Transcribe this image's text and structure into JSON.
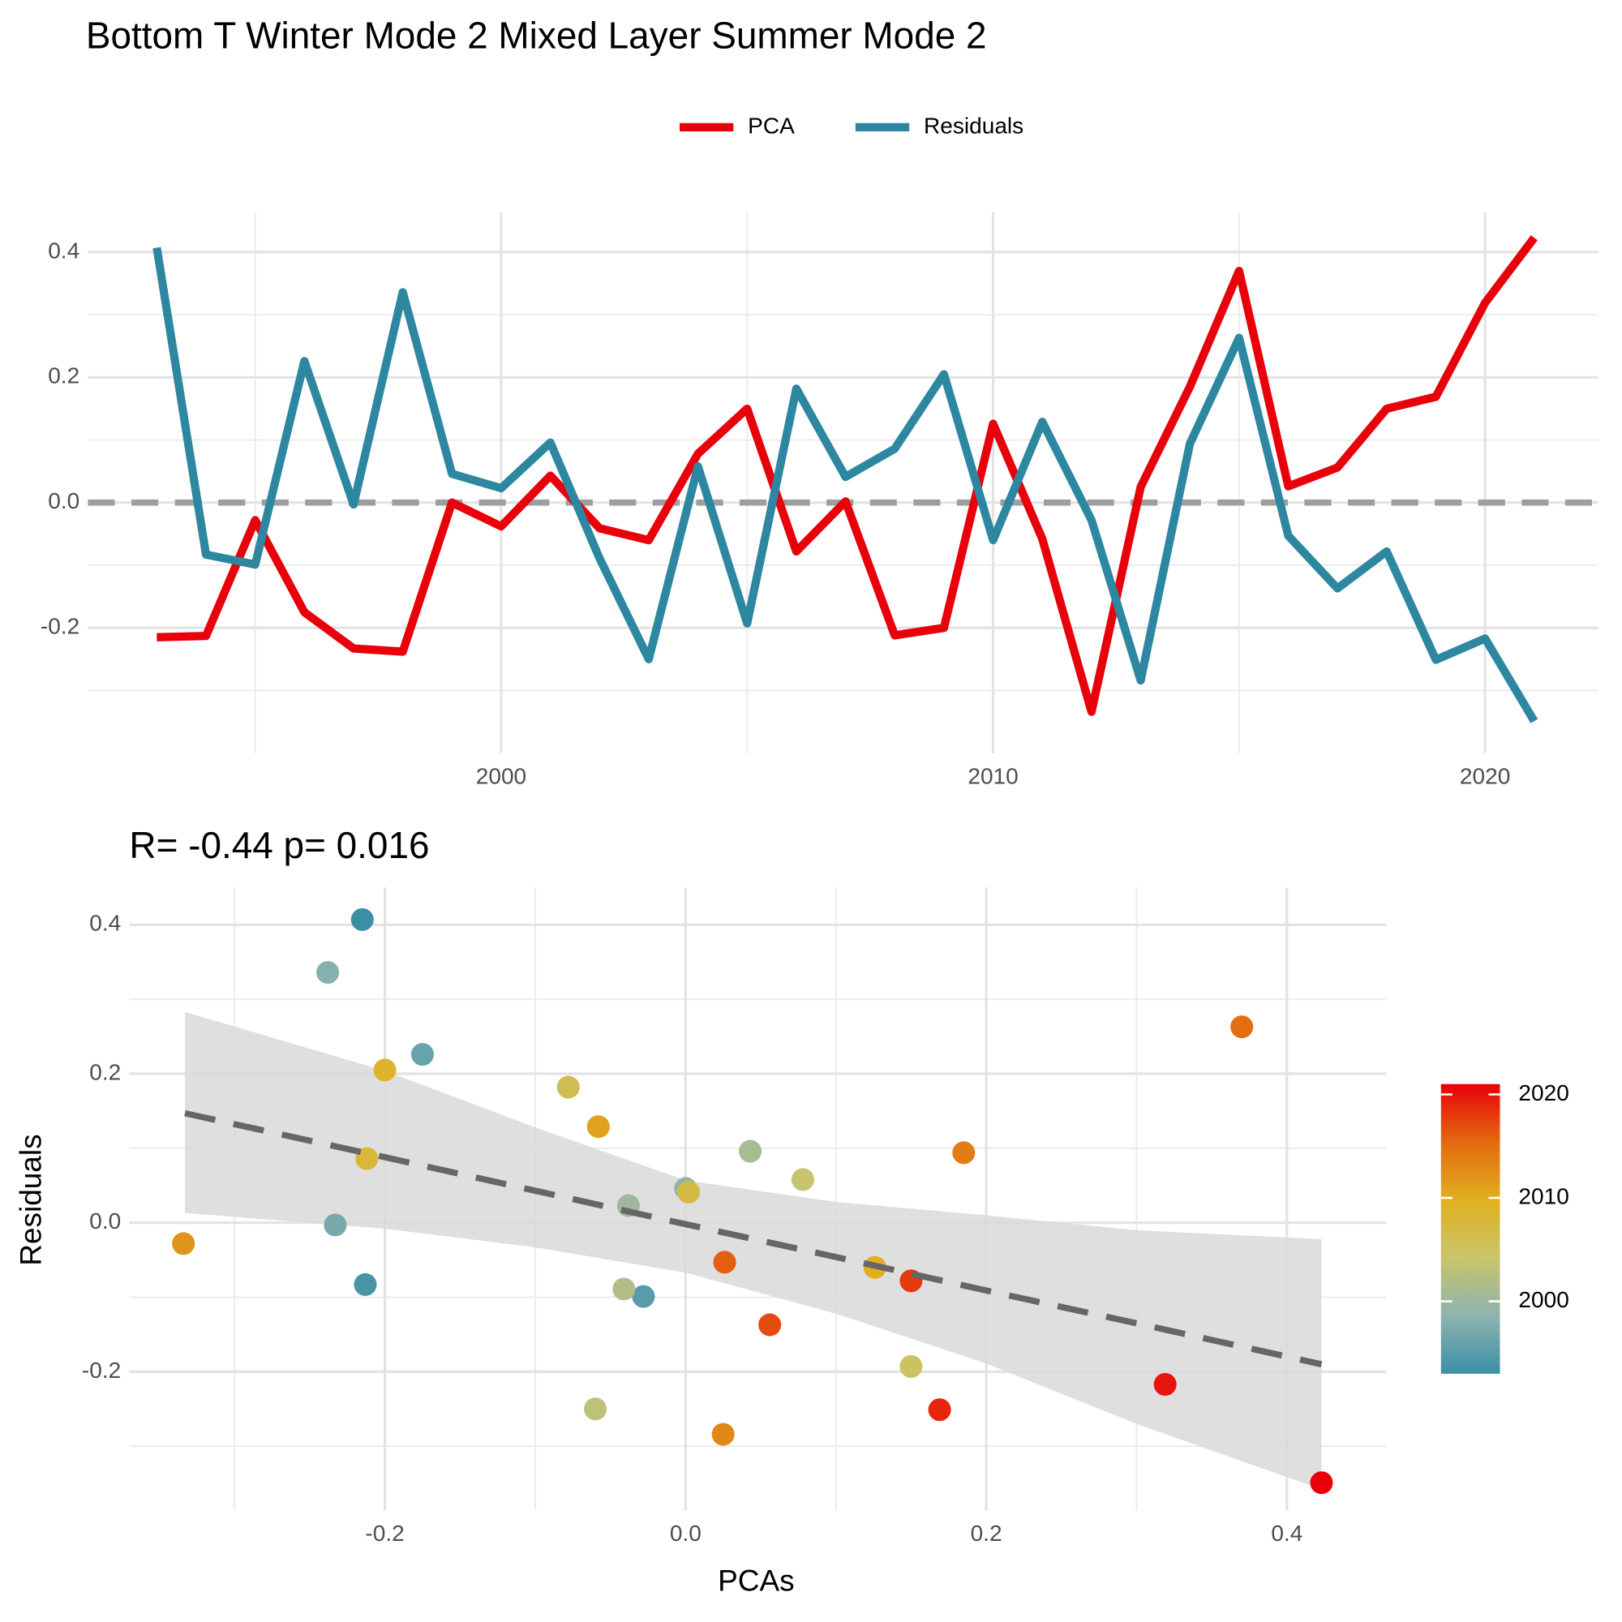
{
  "chart_data": [
    {
      "type": "line",
      "title": "Bottom T Winter Mode 2 Mixed Layer Summer Mode 2",
      "x": [
        1993,
        1994,
        1995,
        1996,
        1997,
        1998,
        1999,
        2000,
        2001,
        2002,
        2003,
        2004,
        2005,
        2006,
        2007,
        2008,
        2009,
        2010,
        2011,
        2012,
        2013,
        2014,
        2015,
        2016,
        2017,
        2018,
        2019,
        2020,
        2021
      ],
      "series": [
        {
          "name": "PCA",
          "color": "#e8000b",
          "values": [
            -0.215,
            -0.213,
            -0.028,
            -0.175,
            -0.233,
            -0.238,
            0.0,
            -0.038,
            0.043,
            -0.041,
            -0.06,
            0.078,
            0.15,
            -0.078,
            0.002,
            -0.212,
            -0.2,
            0.126,
            -0.058,
            -0.334,
            0.025,
            0.185,
            0.37,
            0.026,
            0.056,
            0.15,
            0.169,
            0.319,
            0.423
          ]
        },
        {
          "name": "Residuals",
          "color": "#2e87a0",
          "values": [
            0.407,
            -0.083,
            -0.099,
            0.226,
            -0.003,
            0.336,
            0.046,
            0.023,
            0.096,
            -0.089,
            -0.25,
            0.058,
            -0.193,
            0.182,
            0.041,
            0.086,
            0.205,
            -0.06,
            0.129,
            -0.028,
            -0.284,
            0.094,
            0.263,
            -0.053,
            -0.137,
            -0.078,
            -0.251,
            -0.217,
            -0.349
          ]
        }
      ],
      "xlim": [
        1991.6,
        2022.3
      ],
      "xticks": [
        2000,
        2010,
        2020
      ],
      "ylim": [
        -0.4,
        0.464
      ],
      "yticks": [
        0.4,
        0.2,
        {
          "value": 0,
          "label": "0.0"
        },
        -0.2
      ],
      "reference_line": 0,
      "grid": true,
      "minor_grid": true,
      "legend": "top"
    },
    {
      "type": "scatter",
      "annotation": "R= -0.44  p= 0.016",
      "xlabel": "PCAs",
      "ylabel": "Residuals",
      "x": [
        -0.215,
        -0.213,
        -0.028,
        -0.175,
        -0.233,
        -0.238,
        0.0,
        -0.038,
        0.043,
        -0.041,
        -0.06,
        0.078,
        0.15,
        -0.078,
        0.002,
        -0.212,
        -0.2,
        0.126,
        -0.058,
        -0.334,
        0.025,
        0.185,
        0.37,
        0.026,
        0.056,
        0.15,
        0.169,
        0.319,
        0.423
      ],
      "y": [
        0.407,
        -0.083,
        -0.099,
        0.226,
        -0.003,
        0.336,
        0.046,
        0.023,
        0.096,
        -0.089,
        -0.25,
        0.058,
        -0.193,
        0.182,
        0.041,
        0.086,
        0.205,
        -0.06,
        0.129,
        -0.028,
        -0.284,
        0.094,
        0.263,
        -0.053,
        -0.137,
        -0.078,
        -0.251,
        -0.217,
        -0.349
      ],
      "color_values": [
        1993,
        1994,
        1995,
        1996,
        1997,
        1998,
        1999,
        2000,
        2001,
        2002,
        2003,
        2004,
        2005,
        2006,
        2007,
        2008,
        2009,
        2010,
        2011,
        2012,
        2013,
        2014,
        2015,
        2016,
        2017,
        2018,
        2019,
        2020,
        2021
      ],
      "colorscale": [
        "#3a8fa6",
        "#8fb3b0",
        "#c9c56a",
        "#e0b020",
        "#e36a10",
        "#e8000b"
      ],
      "color_lim": [
        1993,
        2021
      ],
      "color_ticks": [
        2000,
        2010,
        2020
      ],
      "fit": {
        "x": [
          -0.333,
          -0.2,
          -0.1,
          0.0,
          0.1,
          0.2,
          0.3,
          0.423
        ],
        "y": [
          0.147,
          0.088,
          0.043,
          -0.002,
          -0.046,
          -0.091,
          -0.135,
          -0.19
        ],
        "lower": [
          0.013,
          -0.008,
          -0.033,
          -0.067,
          -0.122,
          -0.189,
          -0.27,
          -0.358
        ],
        "upper": [
          0.283,
          0.204,
          0.128,
          0.057,
          0.028,
          0.01,
          -0.01,
          -0.022
        ]
      },
      "xlim": [
        -0.37,
        0.466
      ],
      "xticks": [
        -0.2,
        {
          "value": 0,
          "label": "0.0"
        },
        0.2,
        0.4
      ],
      "ylim": [
        -0.386,
        0.45
      ],
      "yticks": [
        0.4,
        0.2,
        {
          "value": 0,
          "label": "0.0"
        },
        -0.2
      ],
      "grid": true,
      "minor_grid": true
    }
  ]
}
